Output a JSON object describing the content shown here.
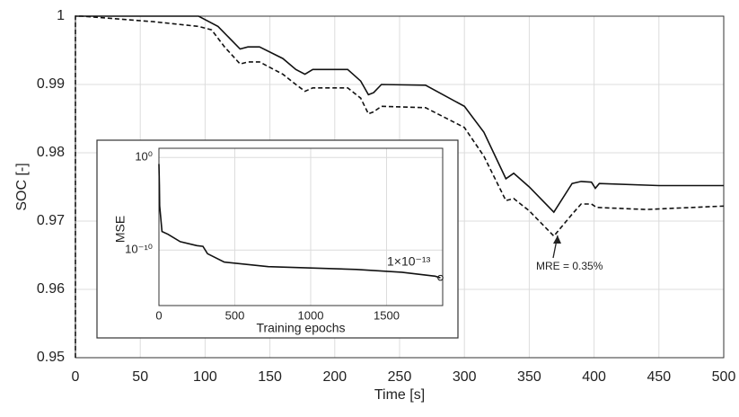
{
  "chart_data": [
    {
      "type": "line",
      "xlabel": "Time [s]",
      "ylabel": "SOC [-]",
      "xlim": [
        0,
        500
      ],
      "ylim": [
        0.95,
        1
      ],
      "xticks": [
        0,
        50,
        100,
        150,
        200,
        250,
        300,
        350,
        400,
        450,
        500
      ],
      "yticks": [
        0.95,
        0.96,
        0.97,
        0.98,
        0.99,
        1
      ],
      "grid": true,
      "log_y": false,
      "annotation": "MRE = 0.35%",
      "series": [
        {
          "color": "#111111",
          "line_style": "solid",
          "x": [
            0,
            95,
            110,
            127,
            133,
            142,
            160,
            170,
            177,
            183,
            210,
            220,
            226,
            230,
            236,
            270,
            300,
            315,
            332,
            338,
            350,
            369,
            383,
            390,
            398,
            401,
            404,
            450,
            500
          ],
          "values": [
            1,
            1,
            0.9985,
            0.9952,
            0.9955,
            0.9955,
            0.9938,
            0.9922,
            0.9915,
            0.9922,
            0.9922,
            0.9905,
            0.9885,
            0.9888,
            0.99,
            0.9899,
            0.9868,
            0.983,
            0.9762,
            0.977,
            0.975,
            0.9713,
            0.9755,
            0.9758,
            0.9757,
            0.9748,
            0.9755,
            0.9752,
            0.9752
          ]
        },
        {
          "color": "#111111",
          "line_style": "dashed",
          "x": [
            0,
            0,
            5,
            60,
            95,
            105,
            115,
            127,
            133,
            142,
            160,
            170,
            177,
            183,
            210,
            220,
            226,
            230,
            236,
            270,
            300,
            315,
            332,
            338,
            350,
            369,
            383,
            390,
            398,
            402,
            440,
            500
          ],
          "values": [
            0.95,
            1,
            1,
            0.9992,
            0.9985,
            0.998,
            0.9955,
            0.993,
            0.9933,
            0.9933,
            0.9915,
            0.99,
            0.989,
            0.9895,
            0.9895,
            0.988,
            0.9857,
            0.986,
            0.9868,
            0.9866,
            0.9837,
            0.9795,
            0.973,
            0.9733,
            0.9715,
            0.9678,
            0.971,
            0.9725,
            0.9725,
            0.972,
            0.9717,
            0.9722
          ]
        }
      ]
    },
    {
      "type": "line",
      "xlabel": "Training epochs",
      "ylabel": "MSE",
      "xlim": [
        0,
        1870
      ],
      "ylim": [
        1e-16,
        10
      ],
      "xticks": [
        0,
        500,
        1000,
        1500
      ],
      "yticks": [
        {
          "value": 1,
          "label": "10⁰"
        },
        {
          "value": 1e-10,
          "label": "10⁻¹⁰"
        }
      ],
      "grid": true,
      "log_y": true,
      "annotation": "1×10⁻¹³",
      "series": [
        {
          "color": "#111111",
          "line_style": "solid",
          "end_marker": true,
          "x": [
            0,
            3,
            5,
            20,
            60,
            140,
            250,
            290,
            320,
            430,
            720,
            1300,
            1600,
            1820,
            1855
          ],
          "values": [
            0.2,
            0.001,
            6e-06,
            1e-08,
            5e-09,
            8e-10,
            3e-10,
            2.5e-10,
            4e-11,
            5e-12,
            1.6e-12,
            8e-13,
            4e-13,
            1.5e-13,
            1e-13
          ]
        }
      ]
    }
  ]
}
